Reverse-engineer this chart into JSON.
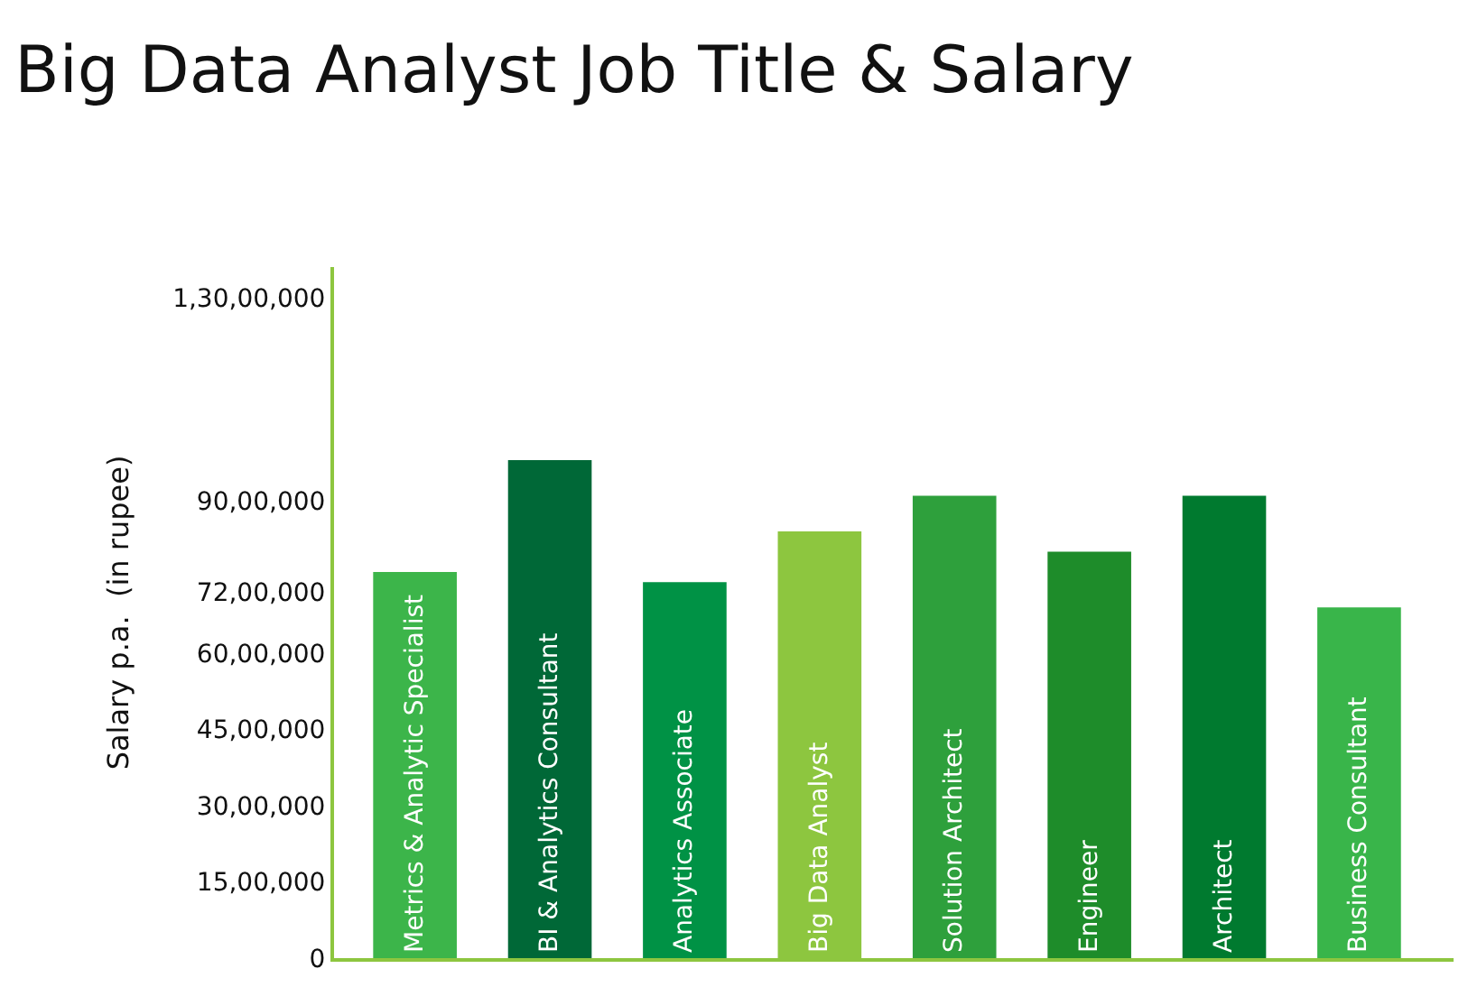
{
  "chart_data": {
    "type": "bar",
    "title": "Big Data Analyst Job Title & Salary",
    "ylabel": "Salary p.a.  (in rupee)",
    "categories": [
      "Metrics & Analytic Specialist",
      "BI & Analytics Consultant",
      "Analytics Associate",
      "Big Data Analyst",
      "Solution Architect",
      "Engineer",
      "Architect",
      "Business Consultant"
    ],
    "values": [
      7600000,
      9800000,
      7400000,
      8400000,
      9100000,
      8000000,
      9100000,
      6900000
    ],
    "colors": [
      "#3cb54a",
      "#006837",
      "#009245",
      "#8dc63f",
      "#2ea03c",
      "#1e8c2a",
      "#007a2f",
      "#39b54a"
    ],
    "ylim": [
      0,
      13600000
    ],
    "yticks": [
      {
        "value": 0,
        "label": "0"
      },
      {
        "value": 1500000,
        "label": "15,00,000"
      },
      {
        "value": 3000000,
        "label": "30,00,000"
      },
      {
        "value": 4500000,
        "label": "45,00,000"
      },
      {
        "value": 6000000,
        "label": "60,00,000"
      },
      {
        "value": 7200000,
        "label": "72,00,000"
      },
      {
        "value": 9000000,
        "label": "90,00,000"
      },
      {
        "value": 13000000,
        "label": "1,30,00,000"
      }
    ],
    "tick_labels": "y",
    "grid": false,
    "legend": false
  }
}
